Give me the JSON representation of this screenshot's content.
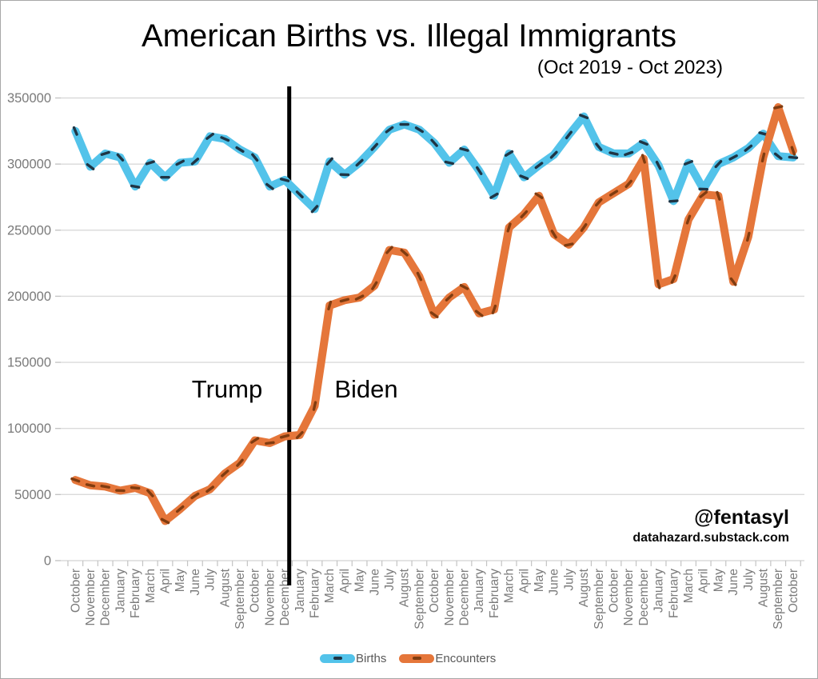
{
  "title": "American Births vs. Illegal Immigrants",
  "subtitle": "(Oct 2019 - Oct 2023)",
  "annotations": {
    "left": "Trump",
    "right": "Biden"
  },
  "watermark": {
    "handle": "@fentasyl",
    "site": "datahazard.substack.com"
  },
  "colors": {
    "births_line": "#53C3EA",
    "births_marker": "#1F3545",
    "encounters_line": "#E5763A",
    "encounters_marker": "#803C10",
    "gridline": "#DADADA",
    "tick": "#C4C4C4",
    "axis_text": "#7A7A7A",
    "divider": "#000000"
  },
  "chart_data": {
    "type": "line",
    "title": "American Births vs. Illegal Immigrants",
    "subtitle": "(Oct 2019 - Oct 2023)",
    "xlabel": "",
    "ylabel": "",
    "ylim": [
      0,
      350000
    ],
    "yticks": [
      0,
      50000,
      100000,
      150000,
      200000,
      250000,
      300000,
      350000
    ],
    "grid": "horizontal",
    "legend_position": "bottom",
    "divider_between_indices": [
      14,
      15
    ],
    "divider_note": "vertical black line separates Trump (through Dec 2020) from Biden (Jan 2021 on)",
    "x": [
      "October",
      "November",
      "December",
      "January",
      "February",
      "March",
      "April",
      "May",
      "June",
      "July",
      "August",
      "September",
      "October",
      "November",
      "December",
      "January",
      "February",
      "March",
      "April",
      "May",
      "June",
      "July",
      "August",
      "September",
      "October",
      "November",
      "December",
      "January",
      "February",
      "March",
      "April",
      "May",
      "June",
      "July",
      "August",
      "September",
      "October",
      "November",
      "December",
      "January",
      "February",
      "March",
      "April",
      "May",
      "June",
      "July",
      "August",
      "September",
      "October"
    ],
    "x_years_hint": "Oct 2019 - Oct 2023, monthly",
    "series": [
      {
        "name": "Births",
        "color": "#53C3EA",
        "marker_color": "#1F3545",
        "values": [
          325000,
          298000,
          308000,
          305000,
          283000,
          301000,
          290000,
          301000,
          302000,
          321000,
          319000,
          311000,
          305000,
          283000,
          288000,
          277000,
          266000,
          302000,
          292000,
          301000,
          313000,
          326000,
          330000,
          326000,
          316000,
          301000,
          311000,
          295000,
          276000,
          308000,
          290000,
          299000,
          307000,
          322000,
          336000,
          313000,
          308000,
          308000,
          316000,
          299000,
          272000,
          301000,
          281000,
          300000,
          305000,
          312000,
          323000,
          306000,
          305000
        ]
      },
      {
        "name": "Encounters",
        "color": "#E5763A",
        "marker_color": "#803C10",
        "values": [
          61000,
          57000,
          56000,
          53000,
          55000,
          51000,
          30000,
          39000,
          49000,
          54000,
          66000,
          74000,
          91000,
          89000,
          94000,
          95000,
          117000,
          193000,
          197000,
          199000,
          208000,
          235000,
          233000,
          215000,
          186000,
          199000,
          207000,
          187000,
          190000,
          252000,
          262000,
          276000,
          247000,
          239000,
          252000,
          271000,
          278000,
          285000,
          304000,
          209000,
          213000,
          258000,
          277000,
          276000,
          211000,
          245000,
          305000,
          343000,
          310000
        ]
      }
    ]
  }
}
